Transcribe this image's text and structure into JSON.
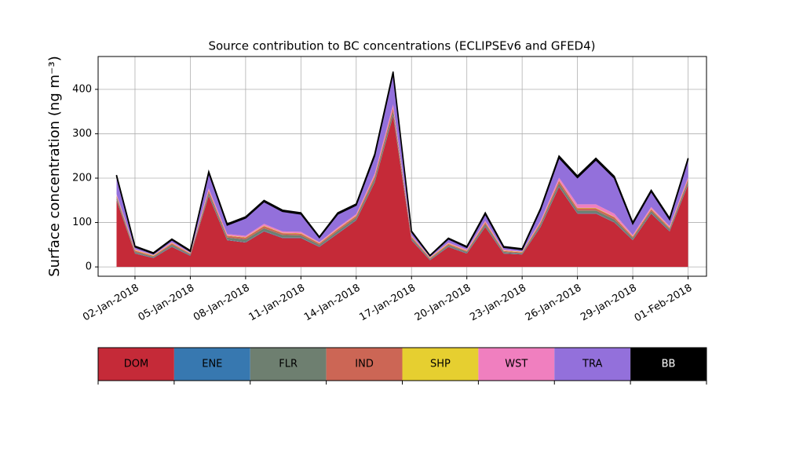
{
  "chart_data": {
    "type": "stacked_area",
    "title": "Source contribution to BC concentrations (ECLIPSEv6 and GFED4)",
    "ylabel": "Surface concentration (ng m⁻³)",
    "x": [
      "2018-01-01",
      "2018-01-02",
      "2018-01-03",
      "2018-01-04",
      "2018-01-05",
      "2018-01-06",
      "2018-01-07",
      "2018-01-08",
      "2018-01-09",
      "2018-01-10",
      "2018-01-11",
      "2018-01-12",
      "2018-01-13",
      "2018-01-14",
      "2018-01-15",
      "2018-01-16",
      "2018-01-17",
      "2018-01-18",
      "2018-01-19",
      "2018-01-20",
      "2018-01-21",
      "2018-01-22",
      "2018-01-23",
      "2018-01-24",
      "2018-01-25",
      "2018-01-26",
      "2018-01-27",
      "2018-01-28",
      "2018-01-29",
      "2018-01-30",
      "2018-01-31",
      "2018-02-01"
    ],
    "series": [
      {
        "name": "DOM",
        "color": "#c52a38",
        "values": [
          150,
          30,
          20,
          45,
          25,
          160,
          60,
          55,
          80,
          65,
          65,
          45,
          75,
          105,
          190,
          340,
          60,
          15,
          45,
          30,
          90,
          30,
          28,
          90,
          180,
          120,
          120,
          100,
          60,
          120,
          80,
          185
        ]
      },
      {
        "name": "ENE",
        "color": "#3778b0",
        "values": [
          1,
          1,
          1,
          1,
          1,
          1,
          1,
          1,
          1,
          1,
          1,
          1,
          1,
          1,
          1,
          1,
          1,
          1,
          1,
          1,
          1,
          1,
          1,
          1,
          1,
          1,
          1,
          1,
          1,
          1,
          1,
          1
        ]
      },
      {
        "name": "FLR",
        "color": "#6e7f70",
        "values": [
          5,
          3,
          2,
          4,
          2,
          6,
          5,
          6,
          6,
          6,
          5,
          4,
          5,
          5,
          7,
          9,
          4,
          2,
          3,
          3,
          5,
          3,
          2,
          5,
          7,
          6,
          6,
          6,
          4,
          5,
          4,
          6
        ]
      },
      {
        "name": "IND",
        "color": "#cc6655",
        "values": [
          4,
          3,
          2,
          3,
          2,
          5,
          4,
          4,
          5,
          4,
          4,
          3,
          4,
          4,
          6,
          8,
          3,
          2,
          3,
          2,
          4,
          2,
          2,
          4,
          6,
          5,
          5,
          5,
          3,
          4,
          3,
          5
        ]
      },
      {
        "name": "SHP",
        "color": "#e6cf30",
        "values": [
          1,
          1,
          1,
          1,
          1,
          1,
          1,
          1,
          1,
          1,
          1,
          1,
          1,
          1,
          1,
          1,
          1,
          1,
          1,
          1,
          1,
          1,
          1,
          1,
          1,
          1,
          1,
          1,
          1,
          1,
          1,
          1
        ]
      },
      {
        "name": "WST",
        "color": "#f07fbf",
        "values": [
          3,
          2,
          1,
          2,
          1,
          4,
          3,
          3,
          4,
          3,
          3,
          2,
          3,
          3,
          5,
          7,
          2,
          1,
          2,
          2,
          3,
          2,
          1,
          3,
          6,
          8,
          8,
          7,
          3,
          4,
          3,
          4
        ]
      },
      {
        "name": "TRA",
        "color": "#9370db",
        "values": [
          40,
          5,
          3,
          5,
          3,
          35,
          20,
          40,
          50,
          45,
          40,
          10,
          30,
          20,
          40,
          70,
          8,
          3,
          8,
          5,
          15,
          5,
          4,
          25,
          45,
          60,
          100,
          80,
          25,
          35,
          15,
          40
        ]
      },
      {
        "name": "BB",
        "color": "#000000",
        "values": [
          3,
          2,
          2,
          2,
          2,
          3,
          3,
          3,
          3,
          3,
          3,
          2,
          3,
          3,
          4,
          4,
          2,
          1,
          2,
          2,
          3,
          2,
          2,
          3,
          4,
          4,
          4,
          4,
          3,
          3,
          3,
          3
        ]
      }
    ],
    "xlim": [
      "2017-12-31",
      "2018-02-02"
    ],
    "xticks": [
      {
        "value": "2018-01-02",
        "label": "02-Jan-2018"
      },
      {
        "value": "2018-01-05",
        "label": "05-Jan-2018"
      },
      {
        "value": "2018-01-08",
        "label": "08-Jan-2018"
      },
      {
        "value": "2018-01-11",
        "label": "11-Jan-2018"
      },
      {
        "value": "2018-01-14",
        "label": "14-Jan-2018"
      },
      {
        "value": "2018-01-17",
        "label": "17-Jan-2018"
      },
      {
        "value": "2018-01-20",
        "label": "20-Jan-2018"
      },
      {
        "value": "2018-01-23",
        "label": "23-Jan-2018"
      },
      {
        "value": "2018-01-26",
        "label": "26-Jan-2018"
      },
      {
        "value": "2018-01-29",
        "label": "29-Jan-2018"
      },
      {
        "value": "2018-02-01",
        "label": "01-Feb-2018"
      }
    ],
    "ylim": [
      -21,
      474
    ],
    "yticks": [
      0,
      100,
      200,
      300,
      400
    ],
    "grid": true
  }
}
